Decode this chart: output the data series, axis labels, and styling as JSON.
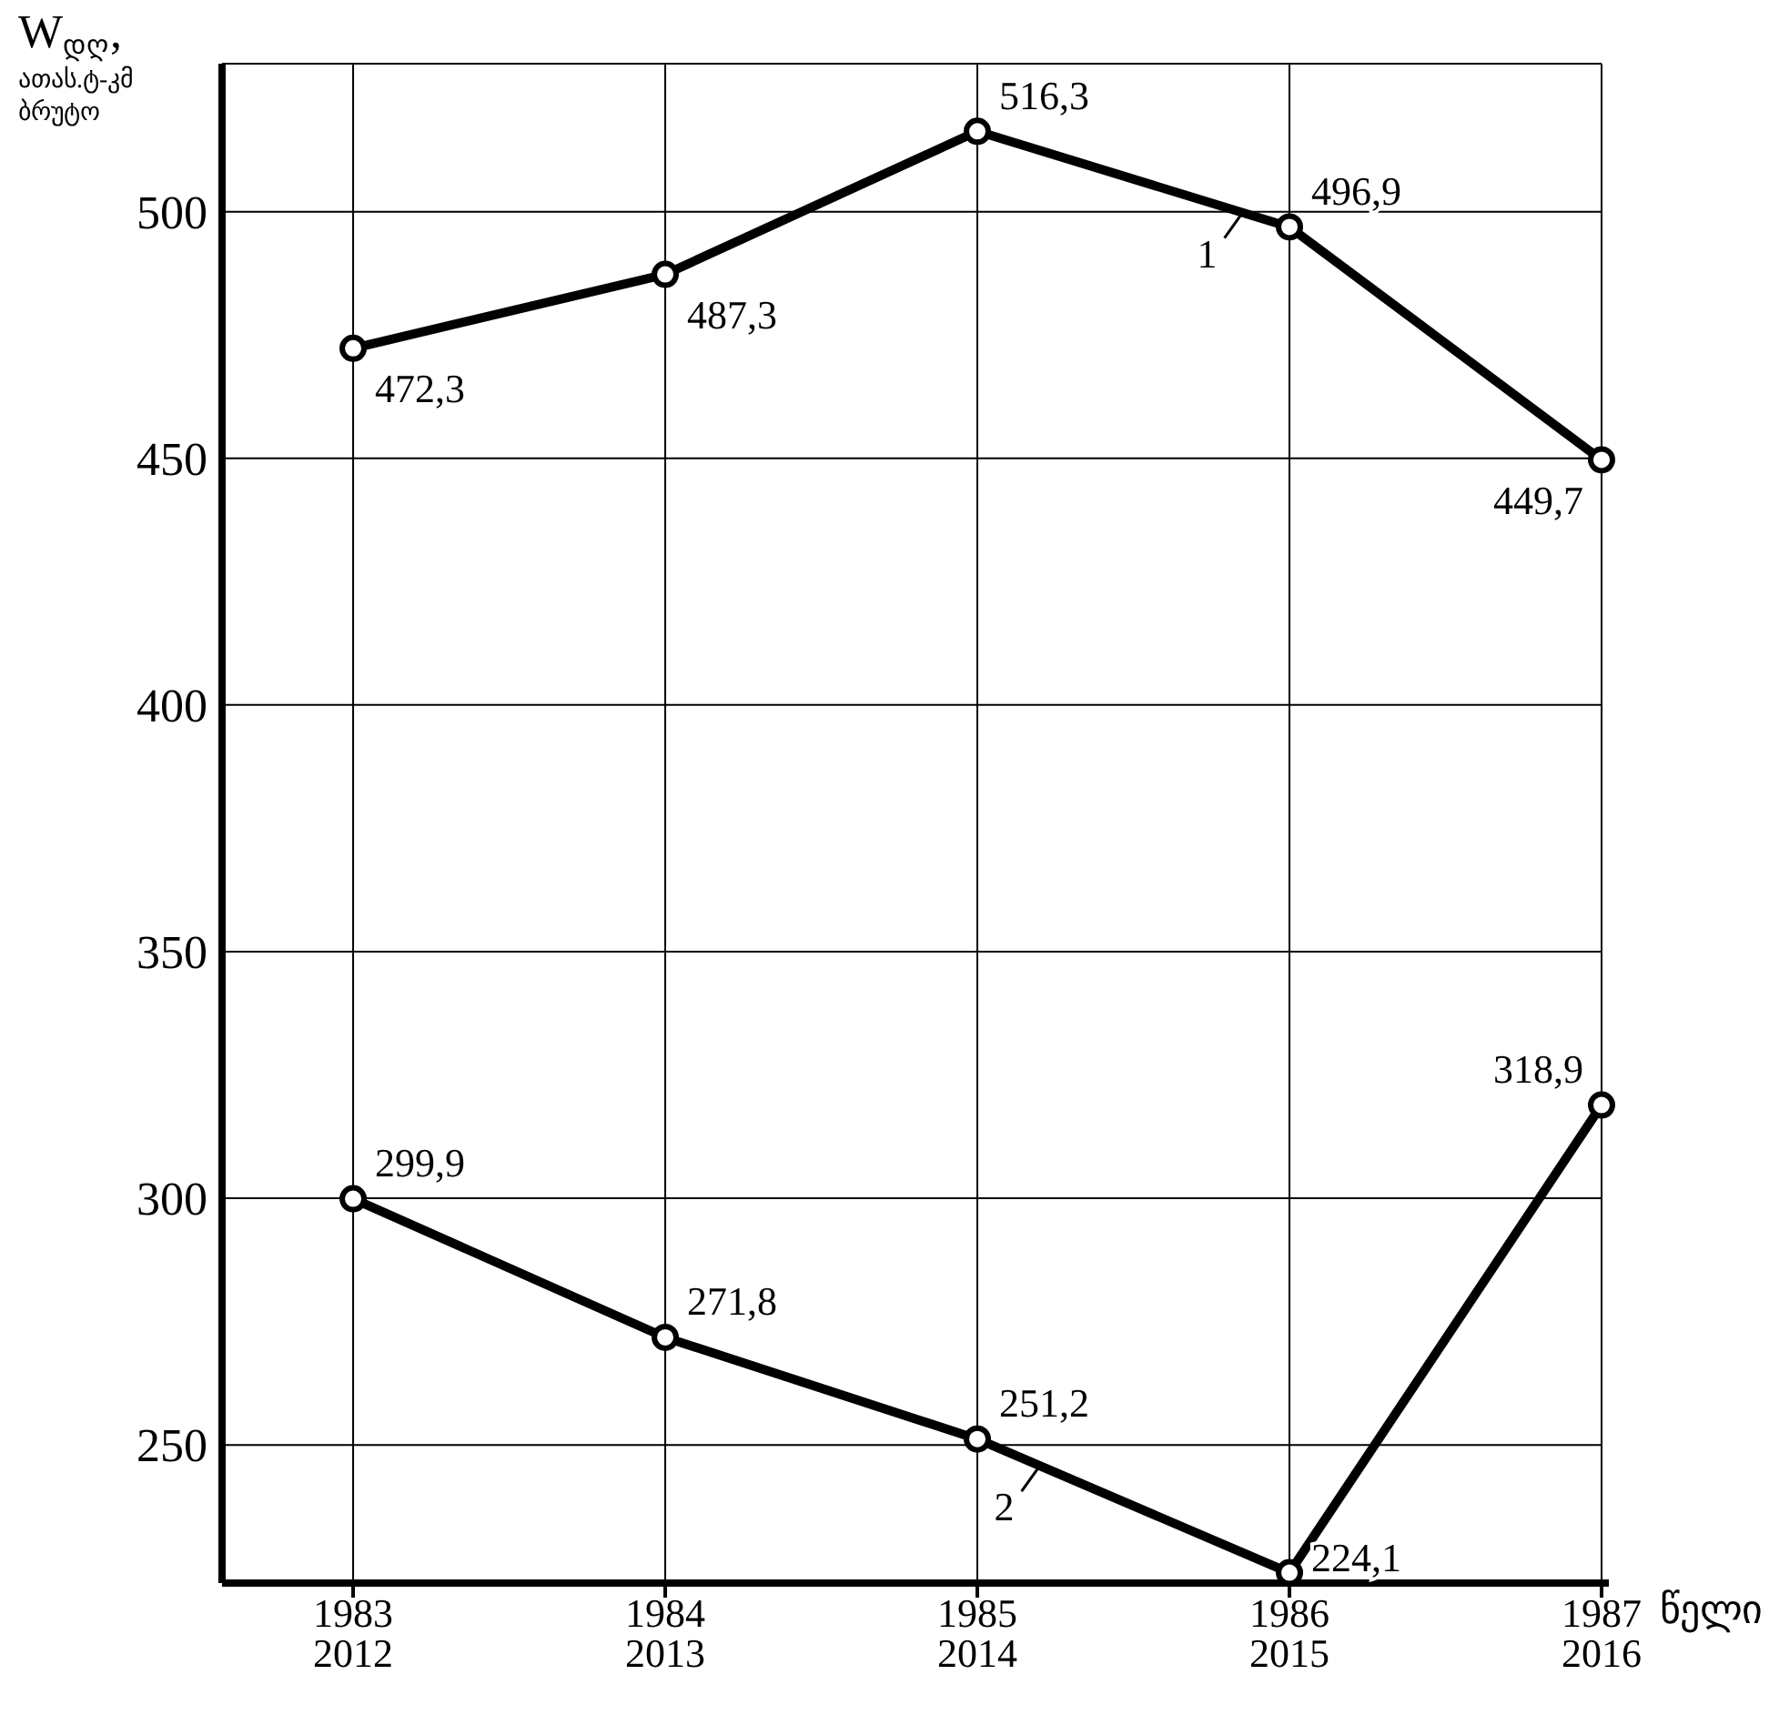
{
  "chart_data": {
    "type": "line",
    "ylabel": "W$_{დღ}$, ათას.ტ-კმ ბრუტო",
    "xlabel": "წელი",
    "categories": [
      "1983 2012",
      "1984 2013",
      "1985 2014",
      "1986 2015",
      "1987 2016"
    ],
    "series": [
      {
        "name": "1",
        "color": "#000000",
        "values": [
          472.3,
          487.3,
          516.3,
          496.9,
          449.7
        ],
        "value_labels": [
          "472,3",
          "487,3",
          "516,3",
          "496,9",
          "449,7"
        ]
      },
      {
        "name": "2",
        "color": "#000000",
        "values": [
          299.9,
          271.8,
          251.2,
          224.1,
          318.9
        ],
        "value_labels": [
          "299,9",
          "271,8",
          "251,2",
          "224,1",
          "318,9"
        ]
      }
    ],
    "ylim": [
      222,
      530
    ],
    "yticks": [
      250,
      300,
      350,
      400,
      450,
      500
    ],
    "grid": true,
    "marker": "circle",
    "line_style": "solid",
    "data_labels": true,
    "legend": "center"
  }
}
